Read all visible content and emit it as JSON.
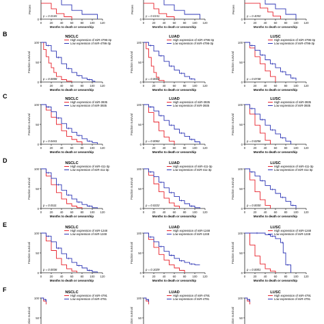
{
  "colors": {
    "high": "#e8202a",
    "low": "#2b33b4",
    "axis": "#222222"
  },
  "common": {
    "xlabel": "Months to death or censorship",
    "ylabel": "Fraction survival",
    "ylabel_cut": "Percen",
    "xticks": [
      "0",
      "20",
      "40",
      "60",
      "80",
      "100",
      "120"
    ],
    "yticks": [
      "0",
      "50",
      "100"
    ]
  },
  "panels": [
    {
      "letter": "",
      "pvalues": [
        "p = 0.0165",
        "p = 0.0151",
        "p = 0.4050"
      ]
    },
    {
      "letter": "B",
      "mirna": "miR-4796-3p"
    },
    {
      "letter": "C",
      "mirna": "miR-3935"
    },
    {
      "letter": "D",
      "mirna": "miR-411-3p"
    },
    {
      "letter": "E",
      "mirna": "miR-1248"
    },
    {
      "letter": "F",
      "mirna": "miR-4791"
    }
  ],
  "chart_data": [
    {
      "type": "line",
      "panel": "top",
      "subtype": "NSCLC",
      "p_value": "p = 0.0165",
      "ylim": [
        0,
        100
      ]
    },
    {
      "type": "line",
      "panel": "top",
      "subtype": "LUAD",
      "p_value": "p = 0.0151",
      "ylim": [
        0,
        100
      ]
    },
    {
      "type": "line",
      "panel": "top",
      "subtype": "LUSC",
      "p_value": "p = 0.4050",
      "ylim": [
        0,
        100
      ]
    },
    {
      "type": "line",
      "panel": "B",
      "title": "NSCLC",
      "p_value": "p = 0.0008",
      "xlabel": "Months to death or censorship",
      "ylabel": "Fraction survival",
      "xlim": [
        0,
        120
      ],
      "ylim": [
        0,
        100
      ],
      "series": [
        {
          "name": "High expression of miR-4796-3p",
          "x": [
            0,
            5,
            10,
            15,
            20,
            25,
            30,
            40,
            50,
            60
          ],
          "y": [
            100,
            82,
            64,
            48,
            36,
            24,
            14,
            6,
            2,
            0
          ]
        },
        {
          "name": "Low expression of miR-4796-3p",
          "x": [
            0,
            10,
            20,
            30,
            40,
            50,
            60,
            70,
            80,
            90,
            100,
            105
          ],
          "y": [
            100,
            92,
            78,
            62,
            46,
            34,
            24,
            16,
            10,
            6,
            2,
            0
          ]
        }
      ]
    },
    {
      "type": "line",
      "panel": "B",
      "title": "LUAD",
      "p_value": "p = 0.0004",
      "xlabel": "Months to death or censorship",
      "ylabel": "Fraction survival",
      "xlim": [
        0,
        120
      ],
      "ylim": [
        0,
        100
      ],
      "series": [
        {
          "name": "High expression of miR-4796-3p",
          "x": [
            0,
            5,
            10,
            15,
            20,
            25,
            30,
            40
          ],
          "y": [
            100,
            84,
            62,
            40,
            24,
            12,
            4,
            0
          ]
        },
        {
          "name": "Low expression of miR-4796-3p",
          "x": [
            0,
            10,
            20,
            30,
            40,
            50,
            60,
            70,
            80,
            90,
            100
          ],
          "y": [
            100,
            92,
            78,
            66,
            52,
            40,
            30,
            22,
            14,
            8,
            4
          ]
        }
      ]
    },
    {
      "type": "line",
      "panel": "B",
      "title": "LUSC",
      "p_value": "p = 0.0748",
      "xlabel": "Months to death or censorship",
      "ylabel": "Fraction survival",
      "xlim": [
        0,
        120
      ],
      "ylim": [
        0,
        100
      ],
      "series": [
        {
          "name": "High expression of miR-4796-3p",
          "x": [
            0,
            10,
            20,
            30,
            40,
            50,
            60
          ],
          "y": [
            100,
            86,
            64,
            46,
            28,
            14,
            0
          ]
        },
        {
          "name": "Low expression of miR-4796-3p",
          "x": [
            0,
            10,
            20,
            30,
            40,
            50,
            60,
            70,
            80,
            90,
            100
          ],
          "y": [
            100,
            92,
            80,
            68,
            56,
            46,
            36,
            26,
            18,
            10,
            4
          ]
        }
      ]
    },
    {
      "type": "line",
      "panel": "C",
      "title": "NSCLC",
      "p_value": "p = 0.0441",
      "xlabel": "Months to death or censorship",
      "ylabel": "Fraction survival",
      "xlim": [
        0,
        120
      ],
      "ylim": [
        0,
        100
      ],
      "series": [
        {
          "name": "High expression of miR-3935",
          "x": [
            0,
            10,
            20,
            30,
            40,
            50,
            60,
            70,
            80
          ],
          "y": [
            100,
            86,
            68,
            50,
            34,
            20,
            12,
            6,
            0
          ]
        },
        {
          "name": "Low expression of miR-3935",
          "x": [
            0,
            10,
            20,
            30,
            40,
            50,
            60,
            70,
            80,
            90,
            100,
            110
          ],
          "y": [
            100,
            94,
            82,
            66,
            52,
            40,
            30,
            22,
            14,
            8,
            4,
            0
          ]
        }
      ]
    },
    {
      "type": "line",
      "panel": "C",
      "title": "LUAD",
      "p_value": "p = 0.0063",
      "xlabel": "Months to death or censorship",
      "ylabel": "Fraction survival",
      "xlim": [
        0,
        120
      ],
      "ylim": [
        0,
        100
      ],
      "series": [
        {
          "name": "High expression of miR-3935",
          "x": [
            0,
            10,
            20,
            30,
            40,
            50,
            60
          ],
          "y": [
            100,
            80,
            56,
            34,
            18,
            8,
            0
          ]
        },
        {
          "name": "Low expression of miR-3935",
          "x": [
            0,
            10,
            20,
            30,
            40,
            50,
            60,
            70,
            80,
            90,
            100,
            110
          ],
          "y": [
            100,
            94,
            84,
            72,
            60,
            48,
            38,
            28,
            20,
            12,
            6,
            0
          ]
        }
      ]
    },
    {
      "type": "line",
      "panel": "C",
      "title": "LUSC",
      "p_value": "p = 0.0256",
      "xlabel": "Months to death or censorship",
      "ylabel": "Fraction survival",
      "xlim": [
        0,
        120
      ],
      "ylim": [
        0,
        100
      ],
      "series": [
        {
          "name": "High expression of miR-3935",
          "x": [
            0,
            10,
            20,
            30,
            40,
            50
          ],
          "y": [
            100,
            76,
            48,
            28,
            10,
            0
          ]
        },
        {
          "name": "Low expression of miR-3935",
          "x": [
            0,
            10,
            20,
            30,
            40,
            50,
            60,
            70,
            80,
            90
          ],
          "y": [
            100,
            90,
            76,
            62,
            48,
            36,
            26,
            16,
            8,
            0
          ]
        }
      ]
    },
    {
      "type": "line",
      "panel": "D",
      "title": "NSCLC",
      "p_value": "p = 0.0111",
      "xlabel": "Months to death or censorship",
      "ylabel": "Fraction survival",
      "xlim": [
        0,
        120
      ],
      "ylim": [
        0,
        100
      ],
      "series": [
        {
          "name": "High expression of miR-411-3p",
          "x": [
            0,
            10,
            20,
            30,
            40,
            50,
            60,
            70,
            80
          ],
          "y": [
            100,
            82,
            60,
            40,
            24,
            12,
            6,
            2,
            0
          ]
        },
        {
          "name": "Low expression of miR-411-3p",
          "x": [
            0,
            10,
            20,
            30,
            40,
            50,
            60,
            70,
            80,
            90,
            100,
            110
          ],
          "y": [
            100,
            90,
            76,
            60,
            46,
            34,
            24,
            16,
            10,
            6,
            2,
            0
          ]
        }
      ]
    },
    {
      "type": "line",
      "panel": "D",
      "title": "LUAD",
      "p_value": "p = 0.0222",
      "xlabel": "Months to death or censorship",
      "ylabel": "Fraction survival",
      "xlim": [
        0,
        120
      ],
      "ylim": [
        0,
        100
      ],
      "series": [
        {
          "name": "High expression of miR-411-3p",
          "x": [
            0,
            10,
            20,
            30,
            40,
            50,
            60,
            70
          ],
          "y": [
            100,
            84,
            62,
            42,
            26,
            14,
            6,
            0
          ]
        },
        {
          "name": "Low expression of miR-411-3p",
          "x": [
            0,
            10,
            20,
            30,
            40,
            50,
            60,
            70,
            80,
            90,
            100,
            110
          ],
          "y": [
            100,
            92,
            80,
            66,
            52,
            40,
            30,
            20,
            12,
            6,
            2,
            0
          ]
        }
      ]
    },
    {
      "type": "line",
      "panel": "D",
      "title": "LUSC",
      "p_value": "p = 0.0030",
      "xlabel": "Months to death or censorship",
      "ylabel": "Fraction survival",
      "xlim": [
        0,
        120
      ],
      "ylim": [
        0,
        100
      ],
      "series": [
        {
          "name": "High expression of miR-411-3p",
          "x": [
            0,
            10,
            20,
            30,
            40,
            50
          ],
          "y": [
            100,
            72,
            42,
            22,
            8,
            0
          ]
        },
        {
          "name": "Low expression of miR-411-3p",
          "x": [
            0,
            10,
            20,
            30,
            40,
            50,
            60,
            70,
            80,
            90,
            100
          ],
          "y": [
            100,
            92,
            82,
            70,
            58,
            48,
            38,
            28,
            18,
            8,
            0
          ]
        }
      ]
    },
    {
      "type": "line",
      "panel": "E",
      "title": "NSCLC",
      "p_value": "p = 0.0036",
      "xlabel": "Months to death or censorship",
      "ylabel": "Fraction survival",
      "xlim": [
        0,
        120
      ],
      "ylim": [
        0,
        100
      ],
      "series": [
        {
          "name": "High expression of miR-1248",
          "x": [
            0,
            10,
            20,
            30,
            40,
            50,
            60,
            70
          ],
          "y": [
            100,
            80,
            56,
            36,
            20,
            10,
            4,
            0
          ]
        },
        {
          "name": "Low expression of miR-1248",
          "x": [
            0,
            10,
            20,
            30,
            40,
            50,
            60,
            70,
            80,
            90,
            100,
            110
          ],
          "y": [
            100,
            92,
            78,
            62,
            48,
            36,
            26,
            18,
            12,
            6,
            2,
            0
          ]
        }
      ]
    },
    {
      "type": "line",
      "panel": "E",
      "title": "LUAD",
      "p_value": "p = 0.1029",
      "xlabel": "Months to death or censorship",
      "ylabel": "Fraction survival",
      "xlim": [
        0,
        120
      ],
      "ylim": [
        0,
        100
      ],
      "series": [
        {
          "name": "High expression of miR-1248",
          "x": [
            0,
            10,
            20,
            30,
            40,
            50,
            60,
            70,
            80
          ],
          "y": [
            100,
            84,
            64,
            46,
            32,
            20,
            12,
            6,
            0
          ]
        },
        {
          "name": "Low expression of miR-1248",
          "x": [
            0,
            10,
            20,
            30,
            40,
            50,
            60,
            70,
            80,
            90,
            100,
            110
          ],
          "y": [
            100,
            90,
            78,
            66,
            54,
            44,
            36,
            30,
            26,
            22,
            20,
            20
          ]
        }
      ]
    },
    {
      "type": "line",
      "panel": "E",
      "title": "LUSC",
      "p_value": "p = 0.0001",
      "xlabel": "Months to death or censorship",
      "ylabel": "Fraction survival",
      "xlim": [
        0,
        120
      ],
      "ylim": [
        0,
        100
      ],
      "series": [
        {
          "name": "High expression of miR-1248",
          "x": [
            0,
            10,
            20,
            30,
            40,
            50,
            60
          ],
          "y": [
            100,
            70,
            42,
            22,
            10,
            4,
            0
          ]
        },
        {
          "name": "Low expression of miR-1248",
          "x": [
            0,
            20,
            40,
            50,
            60,
            70,
            75,
            80,
            90
          ],
          "y": [
            100,
            100,
            96,
            92,
            86,
            76,
            50,
            20,
            0
          ]
        }
      ]
    },
    {
      "type": "line",
      "panel": "F",
      "title": "NSCLC",
      "ylim": [
        0,
        100
      ],
      "series": [
        {
          "name": "High expression of miR-4791",
          "x": [
            0,
            5,
            10
          ],
          "y": [
            100,
            92,
            84
          ]
        },
        {
          "name": "Low expression of miR-4791",
          "x": [
            0,
            5,
            10
          ],
          "y": [
            100,
            96,
            90
          ]
        }
      ]
    },
    {
      "type": "line",
      "panel": "F",
      "title": "LUAD",
      "ylim": [
        0,
        100
      ],
      "series": [
        {
          "name": "High expression of miR-4791",
          "x": [
            0,
            5,
            10
          ],
          "y": [
            100,
            92,
            84
          ]
        },
        {
          "name": "Low expression of miR-4791",
          "x": [
            0,
            5,
            10
          ],
          "y": [
            100,
            96,
            90
          ]
        }
      ]
    },
    {
      "type": "line",
      "panel": "F",
      "title": "LUSC",
      "ylim": [
        0,
        100
      ],
      "series": [
        {
          "name": "High expression of miR-4791",
          "x": [
            0,
            5,
            10
          ],
          "y": [
            100,
            92,
            84
          ]
        },
        {
          "name": "Low expression of miR-4791",
          "x": [
            0,
            5,
            10
          ],
          "y": [
            100,
            96,
            90
          ]
        }
      ]
    }
  ]
}
